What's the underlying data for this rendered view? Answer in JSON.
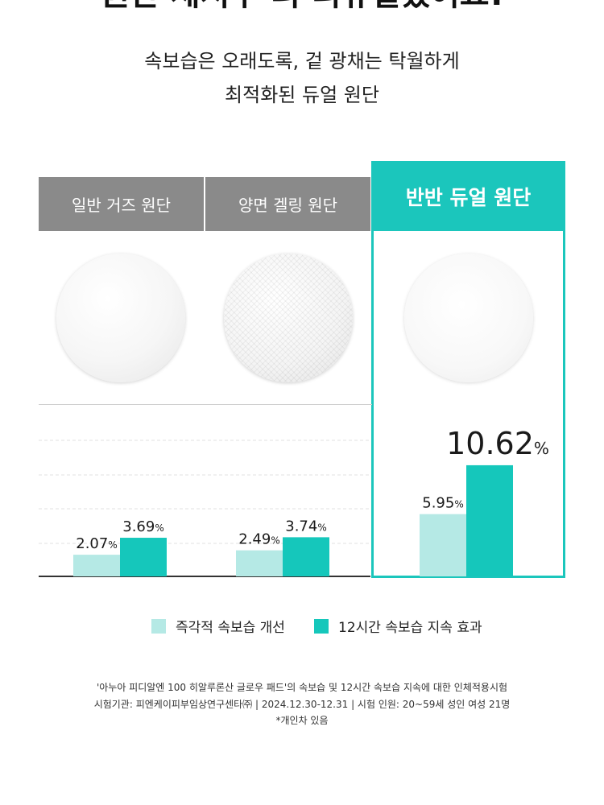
{
  "heading": {
    "title_partial": "원단 세서부 터 리뉴얼했어요!",
    "subtitle_line1": "속보습은 오래도록, 겉 광채는 탁월하게",
    "subtitle_line2": "최적화된 듀얼 원단"
  },
  "columns": [
    {
      "label": "일반 거즈 원단"
    },
    {
      "label": "양면 겔링 원단"
    },
    {
      "label": "반반 듀얼 원단"
    }
  ],
  "colors": {
    "light": "#b5e9e5",
    "dark": "#15c7bb",
    "header_gray": "#8a8a8a",
    "accent": "#1bc6bc"
  },
  "chart_data": {
    "type": "bar",
    "categories": [
      "일반 거즈 원단",
      "양면 겔링 원단",
      "반반 듀얼 원단"
    ],
    "series": [
      {
        "name": "즉각적 속보습 개선",
        "values": [
          2.07,
          2.49,
          5.95
        ]
      },
      {
        "name": "12시간 속보습 지속 효과",
        "values": [
          3.69,
          3.74,
          10.62
        ]
      }
    ],
    "value_labels": [
      [
        "2.07",
        "3.69"
      ],
      [
        "2.49",
        "3.74"
      ],
      [
        "5.95",
        "10.62"
      ]
    ],
    "unit": "%",
    "legend_position": "bottom",
    "grid": true
  },
  "legend": {
    "item1": "즉각적 속보습 개선",
    "item2": "12시간 속보습 지속 효과"
  },
  "footnotes": {
    "line1": "'아누아 피디알엔 100 히알루론산 글로우 패드'의 속보습 및 12시간 속보습 지속에 대한 인체적용시험",
    "line2": "시험기관: 피엔케이피부임상연구센타㈜ | 2024.12.30-12.31 | 시험 인원: 20~59세 성인 여성 21명",
    "line3": "*개인차 있음"
  }
}
